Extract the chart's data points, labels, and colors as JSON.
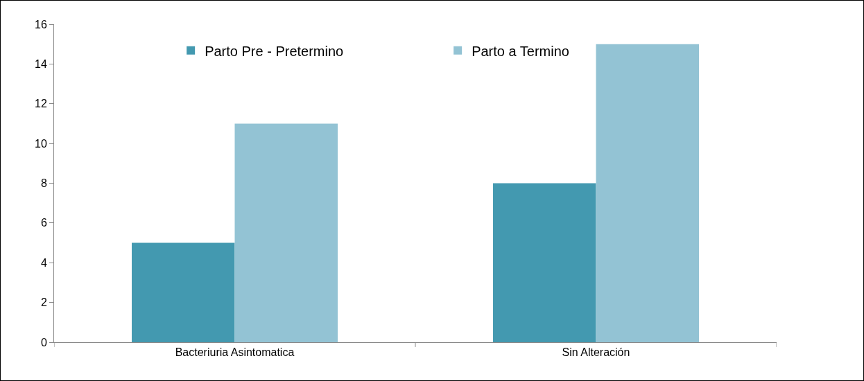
{
  "chart_data": {
    "type": "bar",
    "categories": [
      "Bacteriuria Asintomatica",
      "Sin Alteración"
    ],
    "series": [
      {
        "name": "Parto Pre - Pretermino",
        "color": "#4399b0",
        "values": [
          5,
          8
        ]
      },
      {
        "name": "Parto a Termino",
        "color": "#93c3d4",
        "values": [
          11,
          15
        ]
      }
    ],
    "ylim": [
      0,
      16
    ],
    "yticks": [
      0,
      2,
      4,
      6,
      8,
      10,
      12,
      14,
      16
    ],
    "grid": false,
    "legend": "top"
  }
}
